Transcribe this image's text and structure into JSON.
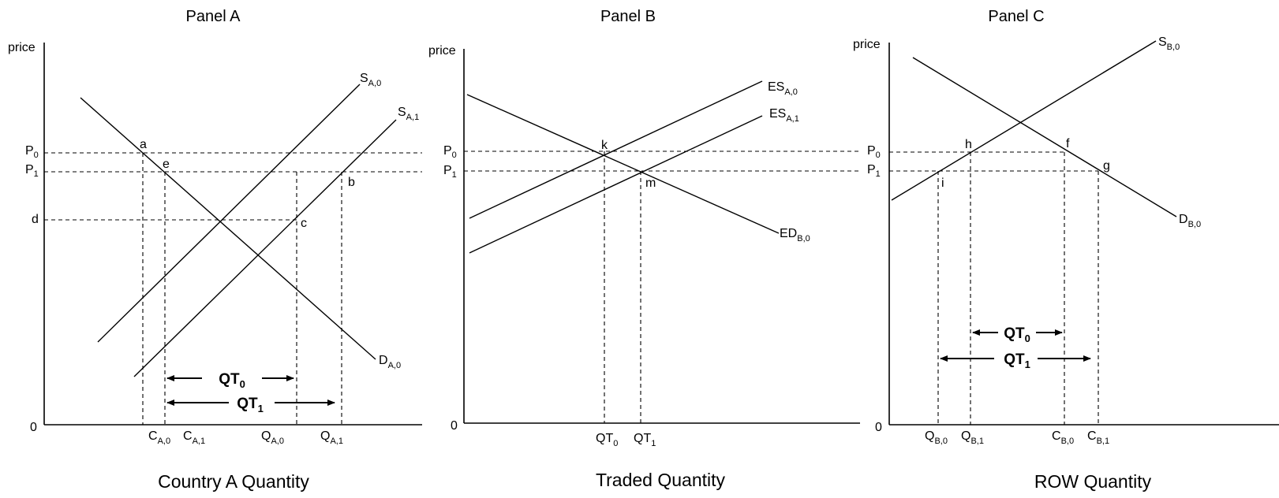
{
  "panels": {
    "a": {
      "title": "Panel A",
      "y_label": "price",
      "origin": "0",
      "x_title": "Country A Quantity",
      "price_labels": {
        "p0": "P",
        "p0_sub": "0",
        "p1": "P",
        "p1_sub": "1",
        "d": "d"
      },
      "curves": {
        "s0": {
          "main": "S",
          "sub": "A,0"
        },
        "s1": {
          "main": "S",
          "sub": "A,1"
        },
        "d0": {
          "main": "D",
          "sub": "A,0"
        }
      },
      "points": {
        "a": "a",
        "e": "e",
        "b": "b",
        "c": "c"
      },
      "x_ticks": [
        {
          "main": "C",
          "sub": "A,0"
        },
        {
          "main": "C",
          "sub": "A,1"
        },
        {
          "main": "Q",
          "sub": "A,0"
        },
        {
          "main": "Q",
          "sub": "A,1"
        }
      ],
      "arrows": [
        {
          "main": "QT",
          "sub": "0"
        },
        {
          "main": "QT",
          "sub": "1"
        }
      ]
    },
    "b": {
      "title": "Panel B",
      "y_label": "price",
      "origin": "0",
      "x_title": "Traded Quantity",
      "price_labels": {
        "p0": "P",
        "p0_sub": "0",
        "p1": "P",
        "p1_sub": "1"
      },
      "curves": {
        "es0": {
          "main": "ES",
          "sub": "A,0"
        },
        "es1": {
          "main": "ES",
          "sub": "A,1"
        },
        "ed0": {
          "main": "ED",
          "sub": "B,0"
        }
      },
      "points": {
        "k": "k",
        "m": "m"
      },
      "x_ticks": [
        {
          "main": "QT",
          "sub": "0"
        },
        {
          "main": "QT",
          "sub": "1"
        }
      ]
    },
    "c": {
      "title": "Panel C",
      "y_label": "price",
      "origin": "0",
      "x_title": "ROW Quantity",
      "price_labels": {
        "p0": "P",
        "p0_sub": "0",
        "p1": "P",
        "p1_sub": "1"
      },
      "curves": {
        "s0": {
          "main": "S",
          "sub": "B,0"
        },
        "d0": {
          "main": "D",
          "sub": "B,0"
        }
      },
      "points": {
        "h": "h",
        "f": "f",
        "g": "g",
        "i": "i"
      },
      "x_ticks": [
        {
          "main": "Q",
          "sub": "B,0"
        },
        {
          "main": "Q",
          "sub": "B,1"
        },
        {
          "main": "C",
          "sub": "B,0"
        },
        {
          "main": "C",
          "sub": "B,1"
        }
      ],
      "arrows": [
        {
          "main": "QT",
          "sub": "0"
        },
        {
          "main": "QT",
          "sub": "1"
        }
      ]
    }
  }
}
